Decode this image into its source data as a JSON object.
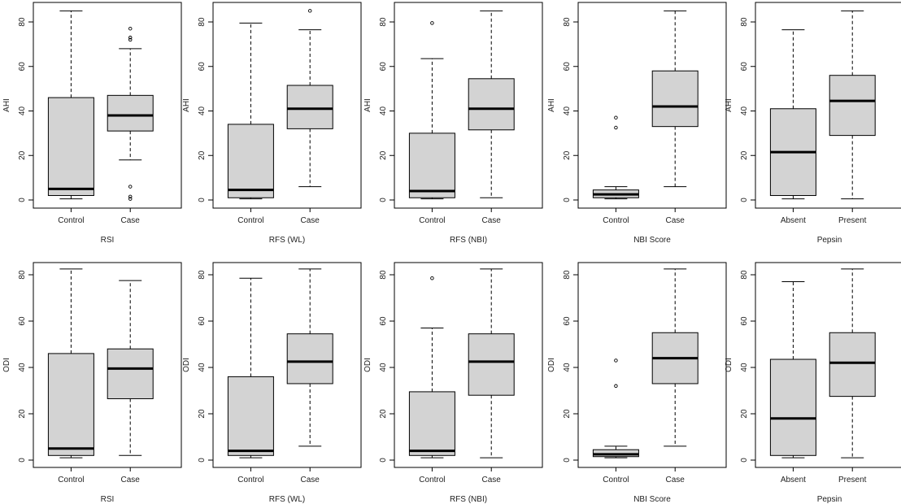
{
  "style": {
    "box_fill": "#d3d3d3",
    "stroke": "#000000",
    "median_stroke": "#000000",
    "text_color": "#222222",
    "background": "#ffffff"
  },
  "chart_data": [
    {
      "type": "box",
      "ylabel": "AHI",
      "xlabel": "RSI",
      "ylim": [
        0,
        85
      ],
      "yticks": [
        0,
        20,
        40,
        60,
        80
      ],
      "categories": [
        "Control",
        "Case"
      ],
      "boxes": [
        {
          "min": 0.5,
          "q1": 2,
          "median": 5,
          "q3": 46,
          "max": 85,
          "outliers": []
        },
        {
          "min": 18,
          "q1": 31,
          "median": 38,
          "q3": 47,
          "max": 68,
          "outliers": [
            72,
            73,
            77,
            6,
            1.5,
            0.5
          ]
        }
      ]
    },
    {
      "type": "box",
      "ylabel": "AHI",
      "xlabel": "RFS (WL)",
      "ylim": [
        0,
        85
      ],
      "yticks": [
        0,
        20,
        40,
        60,
        80
      ],
      "categories": [
        "Control",
        "Case"
      ],
      "boxes": [
        {
          "min": 0.5,
          "q1": 1,
          "median": 4.5,
          "q3": 34,
          "max": 79.5,
          "outliers": []
        },
        {
          "min": 6,
          "q1": 32,
          "median": 41,
          "q3": 51.5,
          "max": 76.5,
          "outliers": [
            85
          ]
        }
      ]
    },
    {
      "type": "box",
      "ylabel": "AHI",
      "xlabel": "RFS (NBI)",
      "ylim": [
        0,
        85
      ],
      "yticks": [
        0,
        20,
        40,
        60,
        80
      ],
      "categories": [
        "Control",
        "Case"
      ],
      "boxes": [
        {
          "min": 0.5,
          "q1": 1,
          "median": 4,
          "q3": 30,
          "max": 63.5,
          "outliers": [
            79.5
          ]
        },
        {
          "min": 1,
          "q1": 31.5,
          "median": 41,
          "q3": 54.5,
          "max": 85,
          "outliers": []
        }
      ]
    },
    {
      "type": "box",
      "ylabel": "AHI",
      "xlabel": "NBI Score",
      "ylim": [
        0,
        85
      ],
      "yticks": [
        0,
        20,
        40,
        60,
        80
      ],
      "categories": [
        "Control",
        "Case"
      ],
      "boxes": [
        {
          "min": 0.5,
          "q1": 1,
          "median": 2.5,
          "q3": 4.5,
          "max": 6,
          "outliers": [
            37,
            32.5
          ]
        },
        {
          "min": 6,
          "q1": 33,
          "median": 42,
          "q3": 58,
          "max": 85,
          "outliers": []
        }
      ]
    },
    {
      "type": "box",
      "ylabel": "AHI",
      "xlabel": "Pepsin",
      "ylim": [
        0,
        85
      ],
      "yticks": [
        0,
        20,
        40,
        60,
        80
      ],
      "categories": [
        "Absent",
        "Present"
      ],
      "boxes": [
        {
          "min": 0.5,
          "q1": 2,
          "median": 21.5,
          "q3": 41,
          "max": 76.5,
          "outliers": []
        },
        {
          "min": 0.5,
          "q1": 29,
          "median": 44.5,
          "q3": 56,
          "max": 85,
          "outliers": []
        }
      ]
    },
    {
      "type": "box",
      "ylabel": "ODI",
      "xlabel": "RSI",
      "ylim": [
        0,
        82
      ],
      "yticks": [
        0,
        20,
        40,
        60,
        80
      ],
      "categories": [
        "Control",
        "Case"
      ],
      "boxes": [
        {
          "min": 1,
          "q1": 2,
          "median": 5,
          "q3": 46,
          "max": 82.5,
          "outliers": []
        },
        {
          "min": 2,
          "q1": 26.5,
          "median": 39.5,
          "q3": 48,
          "max": 77.5,
          "outliers": []
        }
      ]
    },
    {
      "type": "box",
      "ylabel": "ODI",
      "xlabel": "RFS (WL)",
      "ylim": [
        0,
        82
      ],
      "yticks": [
        0,
        20,
        40,
        60,
        80
      ],
      "categories": [
        "Control",
        "Case"
      ],
      "boxes": [
        {
          "min": 1,
          "q1": 2,
          "median": 4,
          "q3": 36,
          "max": 78.5,
          "outliers": []
        },
        {
          "min": 6,
          "q1": 33,
          "median": 42.5,
          "q3": 54.5,
          "max": 82.5,
          "outliers": []
        }
      ]
    },
    {
      "type": "box",
      "ylabel": "ODI",
      "xlabel": "RFS (NBI)",
      "ylim": [
        0,
        82
      ],
      "yticks": [
        0,
        20,
        40,
        60,
        80
      ],
      "categories": [
        "Control",
        "Case"
      ],
      "boxes": [
        {
          "min": 1,
          "q1": 2,
          "median": 4,
          "q3": 29.5,
          "max": 57,
          "outliers": [
            78.5
          ]
        },
        {
          "min": 1,
          "q1": 28,
          "median": 42.5,
          "q3": 54.5,
          "max": 82.5,
          "outliers": []
        }
      ]
    },
    {
      "type": "box",
      "ylabel": "ODI",
      "xlabel": "NBI Score",
      "ylim": [
        0,
        82
      ],
      "yticks": [
        0,
        20,
        40,
        60,
        80
      ],
      "categories": [
        "Control",
        "Case"
      ],
      "boxes": [
        {
          "min": 1,
          "q1": 1.5,
          "median": 2.5,
          "q3": 4.5,
          "max": 6,
          "outliers": [
            43,
            32
          ]
        },
        {
          "min": 6,
          "q1": 33,
          "median": 44,
          "q3": 55,
          "max": 82.5,
          "outliers": []
        }
      ]
    },
    {
      "type": "box",
      "ylabel": "ODI",
      "xlabel": "Pepsin",
      "ylim": [
        0,
        82
      ],
      "yticks": [
        0,
        20,
        40,
        60,
        80
      ],
      "categories": [
        "Absent",
        "Present"
      ],
      "boxes": [
        {
          "min": 1,
          "q1": 2,
          "median": 18,
          "q3": 43.5,
          "max": 77,
          "outliers": []
        },
        {
          "min": 1,
          "q1": 27.5,
          "median": 42,
          "q3": 55,
          "max": 82.5,
          "outliers": []
        }
      ]
    }
  ]
}
